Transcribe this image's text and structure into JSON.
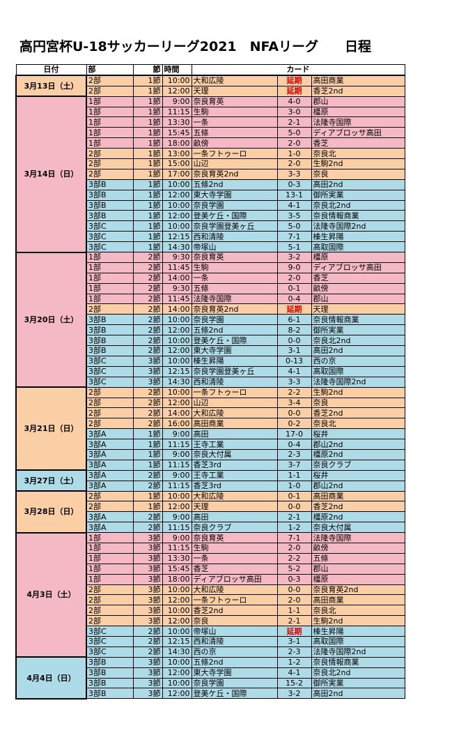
{
  "header": {
    "title": "高円宮杯U-18サッカーリーグ2021　NFAリーグ　　日程"
  },
  "table": {
    "header": [
      "日付",
      "部",
      "節",
      "時間",
      "カード"
    ],
    "groups": [
      {
        "date": "3月13日（土）",
        "rows": [
          [
            "2部",
            "1節",
            "10:00",
            "大和広陵",
            "延期",
            "高田商業"
          ],
          [
            "2部",
            "1節",
            "12:00",
            "天理",
            "延期",
            "香芝2nd"
          ]
        ]
      },
      {
        "date": "3月14日（日）",
        "rows": [
          [
            "1部",
            "1節",
            "9:00",
            "奈良育英",
            "4-0",
            "郡山"
          ],
          [
            "1部",
            "1節",
            "11:15",
            "生駒",
            "3-0",
            "橿原"
          ],
          [
            "1部",
            "1節",
            "13:30",
            "一条",
            "2-1",
            "法隆寺国際"
          ],
          [
            "1部",
            "1節",
            "15:45",
            "五條",
            "5-0",
            "ディアブロッサ高田"
          ],
          [
            "1部",
            "1節",
            "18:00",
            "畝傍",
            "2-0",
            "香芝"
          ],
          [
            "2部",
            "1節",
            "13:00",
            "一条フトゥーロ",
            "1-0",
            "奈良北"
          ],
          [
            "2部",
            "1節",
            "15:00",
            "山辺",
            "2-0",
            "生駒2nd"
          ],
          [
            "2部",
            "1節",
            "17:00",
            "奈良育英2nd",
            "3-3",
            "奈良"
          ],
          [
            "3部B",
            "1節",
            "10:00",
            "五條2nd",
            "0-3",
            "高田2nd"
          ],
          [
            "3部B",
            "1節",
            "12:00",
            "東大寺学園",
            "13-1",
            "御所実業"
          ],
          [
            "3部B",
            "1節",
            "10:00",
            "奈良学園",
            "4-1",
            "奈良北2nd"
          ],
          [
            "3部B",
            "1節",
            "12:00",
            "登美ケ丘・国際",
            "3-5",
            "奈良情報商業"
          ],
          [
            "3部C",
            "1節",
            "10:00",
            "奈良学園登美ヶ丘",
            "5-0",
            "法隆寺国際2nd"
          ],
          [
            "3部C",
            "1節",
            "12:15",
            "西和清陵",
            "7-1",
            "榛生昇陽"
          ],
          [
            "3部C",
            "1節",
            "14:30",
            "帝塚山",
            "5-1",
            "高取国際"
          ]
        ]
      },
      {
        "date": "3月20日（土）",
        "rows": [
          [
            "1部",
            "2節",
            "9:30",
            "奈良育英",
            "3-2",
            "橿原"
          ],
          [
            "1部",
            "2節",
            "11:45",
            "生駒",
            "9-0",
            "ディアブロッサ高田"
          ],
          [
            "1部",
            "2節",
            "14:00",
            "一条",
            "2-0",
            "香芝"
          ],
          [
            "1部",
            "2節",
            "9:30",
            "五條",
            "0-1",
            "畝傍"
          ],
          [
            "1部",
            "2節",
            "11:45",
            "法隆寺国際",
            "0-4",
            "郡山"
          ],
          [
            "2部",
            "2節",
            "14:00",
            "奈良育英2nd",
            "延期",
            "天理"
          ],
          [
            "3部B",
            "2節",
            "10:00",
            "奈良学園",
            "6-1",
            "奈良情報商業"
          ],
          [
            "3部B",
            "2節",
            "12:00",
            "五條2nd",
            "8-2",
            "御所実業"
          ],
          [
            "3部B",
            "2節",
            "10:00",
            "登美ケ丘・国際",
            "0-0",
            "奈良北2nd"
          ],
          [
            "3部B",
            "2節",
            "12:00",
            "東大寺学園",
            "3-1",
            "高田2nd"
          ],
          [
            "3部C",
            "3節",
            "10:00",
            "榛生昇陽",
            "0-13",
            "西の京"
          ],
          [
            "3部C",
            "3節",
            "12:15",
            "奈良学園登美ヶ丘",
            "4-1",
            "高取国際"
          ],
          [
            "3部C",
            "3節",
            "14:30",
            "西和清陵",
            "3-3",
            "法隆寺国際2nd"
          ]
        ]
      },
      {
        "date": "3月21日（日）",
        "rows": [
          [
            "2部",
            "2節",
            "10:00",
            "一条フトゥーロ",
            "2-2",
            "生駒2nd"
          ],
          [
            "2部",
            "2節",
            "12:00",
            "山辺",
            "3-4",
            "奈良"
          ],
          [
            "2部",
            "2節",
            "14:00",
            "大和広陵",
            "0-0",
            "香芝2nd"
          ],
          [
            "2部",
            "2節",
            "16:00",
            "高田商業",
            "0-2",
            "奈良北"
          ],
          [
            "3部A",
            "1節",
            "9:00",
            "高田",
            "17-0",
            "桜井"
          ],
          [
            "3部A",
            "1節",
            "11:15",
            "王寺工業",
            "0-4",
            "郡山2nd"
          ],
          [
            "3部A",
            "1節",
            "9:00",
            "奈良大付属",
            "2-3",
            "橿原2nd"
          ],
          [
            "3部A",
            "1節",
            "11:15",
            "香芝3rd",
            "3-7",
            "奈良クラブ"
          ]
        ]
      },
      {
        "date": "3月27日（土）",
        "rows": [
          [
            "3部A",
            "2節",
            "9:00",
            "王寺工業",
            "1-1",
            "桜井"
          ],
          [
            "3部A",
            "2節",
            "11:15",
            "香芝3rd",
            "1-0",
            "郡山2nd"
          ]
        ]
      },
      {
        "date": "3月28日（日）",
        "rows": [
          [
            "2部",
            "1節",
            "10:00",
            "大和広陵",
            "0-1",
            "高田商業"
          ],
          [
            "2部",
            "1節",
            "12:00",
            "天理",
            "0-0",
            "香芝2nd"
          ],
          [
            "3部A",
            "2節",
            "9:00",
            "高田",
            "2-1",
            "橿原2nd"
          ],
          [
            "3部A",
            "2節",
            "11:15",
            "奈良クラブ",
            "1-2",
            "奈良大付属"
          ]
        ]
      },
      {
        "date": "4月3日（土）",
        "rows": [
          [
            "1部",
            "3節",
            "9:00",
            "奈良育英",
            "7-1",
            "法隆寺国際"
          ],
          [
            "1部",
            "3節",
            "11:15",
            "生駒",
            "2-0",
            "畝傍"
          ],
          [
            "1部",
            "3節",
            "13:30",
            "一条",
            "2-2",
            "五條"
          ],
          [
            "1部",
            "3節",
            "15:45",
            "香芝",
            "5-2",
            "郡山"
          ],
          [
            "1部",
            "3節",
            "18:00",
            "ディアブロッサ高田",
            "0-3",
            "橿原"
          ],
          [
            "2部",
            "3節",
            "10:00",
            "大和広陵",
            "0-0",
            "奈良育英2nd"
          ],
          [
            "2部",
            "3節",
            "12:00",
            "一条フトゥーロ",
            "2-0",
            "高田商業"
          ],
          [
            "2部",
            "3節",
            "10:00",
            "香芝2nd",
            "1-1",
            "奈良北"
          ],
          [
            "2部",
            "3節",
            "12:00",
            "奈良",
            "2-1",
            "生駒2nd"
          ],
          [
            "3部C",
            "2節",
            "10:00",
            "帝塚山",
            "延期",
            "榛生昇陽"
          ],
          [
            "3部C",
            "2節",
            "12:15",
            "西和清陵",
            "3-1",
            "高取国際"
          ],
          [
            "3部C",
            "2節",
            "14:30",
            "西の京",
            "2-3",
            "法隆寺国際2nd"
          ]
        ]
      },
      {
        "date": "4月4日（日）",
        "rows": [
          [
            "3部B",
            "3節",
            "10:00",
            "五條2nd",
            "1-2",
            "奈良情報商業"
          ],
          [
            "3部B",
            "3節",
            "12:00",
            "東大寺学園",
            "4-1",
            "奈良北2nd"
          ],
          [
            "3部B",
            "3節",
            "10:00",
            "奈良学園",
            "15-2",
            "御所実業"
          ],
          [
            "3部B",
            "3節",
            "12:00",
            "登美ケ丘・国際",
            "3-2",
            "高田2nd"
          ]
        ]
      }
    ]
  }
}
